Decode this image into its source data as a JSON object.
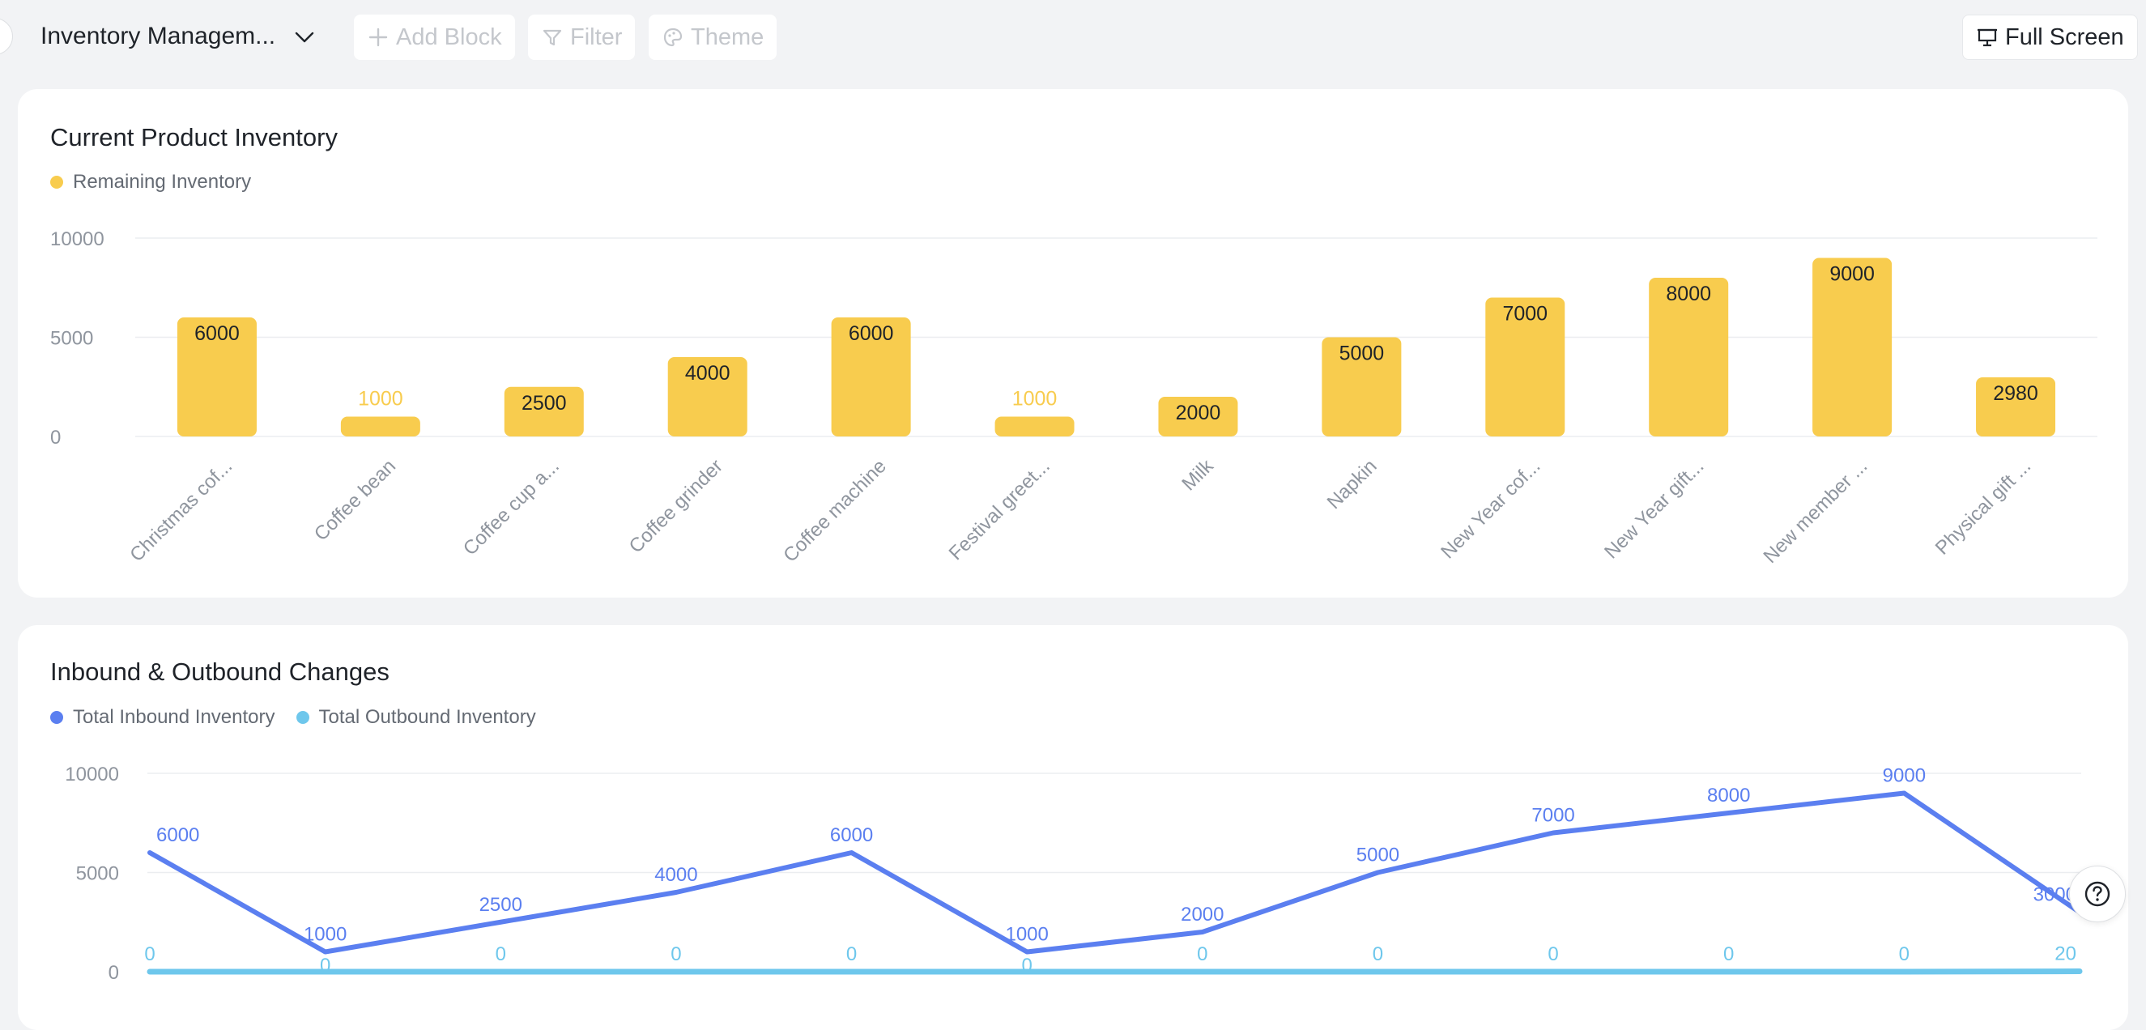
{
  "header": {
    "dashboard_title": "Inventory Managem...",
    "add_block_label": "Add Block",
    "filter_label": "Filter",
    "theme_label": "Theme",
    "full_screen_label": "Full Screen"
  },
  "icons": {
    "chevron": "chevron-down-icon",
    "add": "plus-icon",
    "filter": "filter-icon",
    "theme": "palette-icon",
    "fullscreen": "presentation-icon",
    "help": "question-circle-icon"
  },
  "colors": {
    "bar": "#f8cc4e",
    "inbound": "#5b7ff0",
    "outbound": "#6ec7ec",
    "grid": "#ebedf0",
    "axis_text": "#8f959e"
  },
  "chart_data": [
    {
      "type": "bar",
      "title": "Current Product Inventory",
      "categories": [
        "Christmas cof...",
        "Coffee bean",
        "Coffee cup a...",
        "Coffee grinder",
        "Coffee machine",
        "Festival greet...",
        "Milk",
        "Napkin",
        "New Year cof...",
        "New Year gift...",
        "New member ...",
        "Physical gift ..."
      ],
      "series": [
        {
          "name": "Remaining Inventory",
          "values": [
            6000,
            1000,
            2500,
            4000,
            6000,
            1000,
            2000,
            5000,
            7000,
            8000,
            9000,
            2980
          ]
        }
      ],
      "yticks": [
        0,
        5000,
        10000
      ],
      "ylim": [
        0,
        10000
      ],
      "grid": true,
      "legend": "top-left"
    },
    {
      "type": "line",
      "title": "Inbound & Outbound Changes",
      "series": [
        {
          "name": "Total Inbound Inventory",
          "values": [
            6000,
            1000,
            2500,
            4000,
            6000,
            1000,
            2000,
            5000,
            7000,
            8000,
            9000,
            3000
          ]
        },
        {
          "name": "Total Outbound Inventory",
          "values": [
            0,
            0,
            0,
            0,
            0,
            0,
            0,
            0,
            0,
            0,
            0,
            20
          ]
        }
      ],
      "yticks": [
        0,
        5000,
        10000
      ],
      "ylim": [
        0,
        10000
      ],
      "grid": true,
      "legend": "top-left"
    }
  ]
}
